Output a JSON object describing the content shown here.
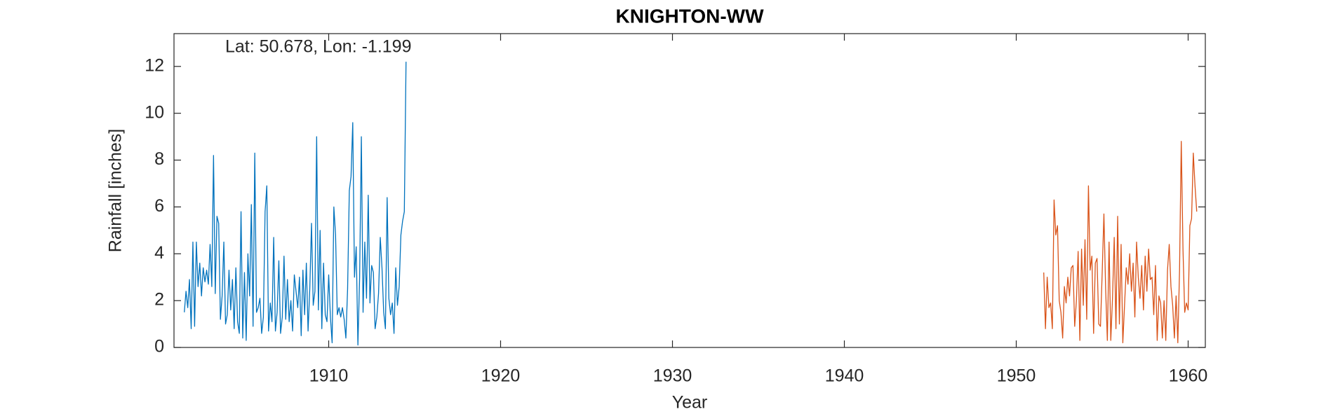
{
  "chart_data": {
    "type": "line",
    "title": "KNIGHTON-WW",
    "annotation": "Lat: 50.678, Lon: -1.199",
    "x_label": "Year",
    "y_label": "Rainfall [inches]",
    "xlim": [
      1901,
      1961
    ],
    "xticks": [
      1910,
      1920,
      1930,
      1940,
      1950,
      1960
    ],
    "ylim": [
      0,
      13.4
    ],
    "yticks": [
      0,
      2,
      4,
      6,
      8,
      10,
      12
    ],
    "grid": false,
    "series": [
      {
        "color": "#0072bd",
        "x": [
          1901.6,
          1901.7,
          1901.8,
          1901.9,
          1902.0,
          1902.1,
          1902.2,
          1902.3,
          1902.4,
          1902.5,
          1902.6,
          1902.7,
          1902.8,
          1902.9,
          1903.0,
          1903.1,
          1903.2,
          1903.3,
          1903.4,
          1903.5,
          1903.6,
          1903.7,
          1903.8,
          1903.9,
          1904.0,
          1904.1,
          1904.2,
          1904.3,
          1904.4,
          1904.5,
          1904.6,
          1904.7,
          1904.8,
          1904.9,
          1905.0,
          1905.1,
          1905.2,
          1905.3,
          1905.4,
          1905.5,
          1905.6,
          1905.7,
          1905.8,
          1905.9,
          1906.0,
          1906.1,
          1906.2,
          1906.3,
          1906.4,
          1906.5,
          1906.6,
          1906.7,
          1906.8,
          1906.9,
          1907.0,
          1907.1,
          1907.2,
          1907.3,
          1907.4,
          1907.5,
          1907.6,
          1907.7,
          1907.8,
          1907.9,
          1908.0,
          1908.1,
          1908.2,
          1908.3,
          1908.4,
          1908.5,
          1908.6,
          1908.7,
          1908.8,
          1908.9,
          1909.0,
          1909.1,
          1909.2,
          1909.3,
          1909.4,
          1909.5,
          1909.6,
          1909.7,
          1909.8,
          1909.9,
          1910.0,
          1910.1,
          1910.2,
          1910.3,
          1910.4,
          1910.5,
          1910.6,
          1910.7,
          1910.8,
          1910.9,
          1911.0,
          1911.1,
          1911.2,
          1911.3,
          1911.4,
          1911.5,
          1911.6,
          1911.7,
          1911.8,
          1911.9,
          1912.0,
          1912.1,
          1912.2,
          1912.3,
          1912.4,
          1912.5,
          1912.6,
          1912.7,
          1912.8,
          1912.9,
          1913.0,
          1913.1,
          1913.2,
          1913.3,
          1913.4,
          1913.5,
          1913.6,
          1913.7,
          1913.8,
          1913.9,
          1914.0,
          1914.1,
          1914.2,
          1914.3,
          1914.4,
          1914.5
        ],
        "values": [
          1.5,
          2.4,
          1.7,
          2.9,
          0.8,
          4.5,
          0.9,
          4.5,
          2.6,
          3.6,
          2.2,
          3.4,
          2.8,
          3.3,
          2.7,
          4.4,
          2.6,
          8.2,
          2.3,
          5.6,
          5.3,
          1.2,
          2.2,
          4.5,
          1.0,
          1.4,
          3.3,
          1.6,
          2.9,
          0.8,
          3.4,
          1.1,
          0.6,
          5.8,
          0.4,
          3.2,
          0.3,
          4.0,
          2.2,
          6.1,
          0.9,
          8.3,
          1.5,
          1.7,
          2.1,
          0.6,
          1.3,
          5.8,
          6.9,
          0.7,
          1.9,
          1.1,
          4.7,
          0.7,
          1.5,
          3.7,
          0.6,
          1.3,
          3.9,
          1.2,
          2.9,
          1.1,
          2.0,
          0.7,
          3.1,
          2.4,
          1.7,
          3.0,
          0.5,
          3.3,
          1.4,
          3.6,
          0.7,
          2.5,
          5.3,
          1.8,
          2.4,
          9.0,
          1.6,
          5.0,
          0.8,
          3.6,
          1.4,
          1.1,
          3.1,
          1.3,
          0.2,
          6.0,
          4.8,
          1.4,
          1.7,
          1.3,
          1.7,
          1.2,
          0.4,
          2.5,
          6.7,
          7.3,
          9.6,
          3.0,
          4.3,
          0.1,
          3.0,
          9.0,
          1.5,
          4.5,
          2.1,
          6.5,
          1.9,
          3.5,
          3.2,
          0.8,
          1.3,
          2.3,
          4.7,
          3.4,
          1.5,
          0.8,
          6.4,
          2.1,
          1.4,
          1.9,
          0.6,
          3.4,
          1.8,
          2.6,
          4.8,
          5.4,
          5.8,
          12.2
        ]
      },
      {
        "color": "#d95319",
        "x": [
          1951.6,
          1951.7,
          1951.8,
          1951.9,
          1952.0,
          1952.1,
          1952.2,
          1952.3,
          1952.4,
          1952.5,
          1952.6,
          1952.7,
          1952.8,
          1952.9,
          1953.0,
          1953.1,
          1953.2,
          1953.3,
          1953.4,
          1953.5,
          1953.6,
          1953.7,
          1953.8,
          1953.9,
          1954.0,
          1954.1,
          1954.2,
          1954.3,
          1954.4,
          1954.5,
          1954.6,
          1954.7,
          1954.8,
          1954.9,
          1955.0,
          1955.1,
          1955.2,
          1955.3,
          1955.4,
          1955.5,
          1955.6,
          1955.7,
          1955.8,
          1955.9,
          1956.0,
          1956.1,
          1956.2,
          1956.3,
          1956.4,
          1956.5,
          1956.6,
          1956.7,
          1956.8,
          1956.9,
          1957.0,
          1957.1,
          1957.2,
          1957.3,
          1957.4,
          1957.5,
          1957.6,
          1957.7,
          1957.8,
          1957.9,
          1958.0,
          1958.1,
          1958.2,
          1958.3,
          1958.4,
          1958.5,
          1958.6,
          1958.7,
          1958.8,
          1958.9,
          1959.0,
          1959.1,
          1959.2,
          1959.3,
          1959.4,
          1959.5,
          1959.6,
          1959.7,
          1959.8,
          1959.9,
          1960.0,
          1960.1,
          1960.2,
          1960.3,
          1960.4,
          1960.5
        ],
        "values": [
          3.2,
          0.8,
          3.0,
          1.7,
          1.9,
          0.8,
          6.3,
          4.8,
          5.2,
          2.0,
          1.5,
          0.4,
          2.6,
          1.9,
          3.0,
          2.2,
          3.4,
          3.5,
          0.9,
          2.0,
          4.1,
          0.3,
          4.2,
          1.8,
          4.6,
          1.2,
          6.9,
          3.3,
          3.9,
          0.6,
          3.6,
          3.8,
          1.0,
          0.9,
          3.2,
          5.7,
          2.5,
          0.3,
          4.5,
          0.3,
          2.1,
          4.7,
          0.8,
          5.6,
          1.0,
          4.4,
          0.2,
          1.8,
          3.4,
          2.7,
          4.0,
          2.4,
          3.6,
          1.3,
          4.5,
          3.0,
          2.1,
          3.5,
          1.6,
          3.9,
          2.4,
          4.2,
          2.9,
          3.0,
          1.4,
          3.5,
          0.3,
          2.2,
          1.9,
          0.4,
          2.0,
          0.3,
          3.3,
          4.4,
          2.6,
          1.8,
          0.4,
          2.2,
          0.2,
          3.3,
          8.8,
          4.2,
          1.5,
          1.9,
          1.6,
          5.2,
          5.5,
          8.3,
          6.9,
          5.8
        ]
      }
    ]
  }
}
